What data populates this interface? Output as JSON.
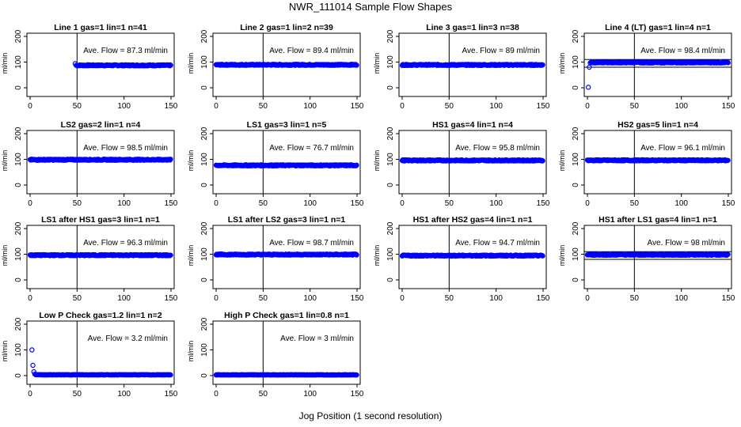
{
  "figure": {
    "title": "NWR_111014  Sample Flow Shapes",
    "xlabel": "Jog Position (1 second resolution)"
  },
  "chart_data": [
    {
      "type": "scatter",
      "title": "Line 1 gas=1 lin=1 n=41",
      "ylabel": "ml/min",
      "annotation": "Ave. Flow =  87.3  ml/min",
      "xlim": [
        0,
        150
      ],
      "ylim": [
        0,
        200
      ],
      "xticks": [
        "0",
        "50",
        "100",
        "150"
      ],
      "yticks": [
        "0",
        "100",
        "200"
      ],
      "vline": 50,
      "hlines": [],
      "flow": 87.3,
      "x": [
        48
      ],
      "y": [
        94
      ]
    },
    {
      "type": "scatter",
      "title": "Line 2 gas=1 lin=2 n=39",
      "ylabel": "ml/min",
      "annotation": "Ave. Flow =  89.4  ml/min",
      "xlim": [
        0,
        150
      ],
      "ylim": [
        0,
        200
      ],
      "xticks": [
        "0",
        "50",
        "100",
        "150"
      ],
      "yticks": [
        "0",
        "100",
        "200"
      ],
      "vline": 50,
      "hlines": [],
      "flow": 89.4,
      "x": [],
      "y": []
    },
    {
      "type": "scatter",
      "title": "Line 3 gas=1 lin=3 n=38",
      "ylabel": "ml/min",
      "annotation": "Ave. Flow =  89  ml/min",
      "xlim": [
        0,
        150
      ],
      "ylim": [
        0,
        200
      ],
      "xticks": [
        "0",
        "50",
        "100",
        "150"
      ],
      "yticks": [
        "0",
        "100",
        "200"
      ],
      "vline": 50,
      "hlines": [],
      "flow": 89,
      "x": [],
      "y": []
    },
    {
      "type": "scatter",
      "title": "Line 4 (LT) gas=1 lin=4 n=1",
      "ylabel": "ml/min",
      "annotation": "Ave. Flow =  98.4  ml/min",
      "xlim": [
        0,
        150
      ],
      "ylim": [
        0,
        200
      ],
      "xticks": [
        "0",
        "50",
        "100",
        "150"
      ],
      "yticks": [
        "0",
        "100",
        "200"
      ],
      "vline": 50,
      "hlines": [
        110,
        80
      ],
      "flow": 98.4,
      "x": [
        1,
        2,
        3
      ],
      "y": [
        2,
        80,
        97
      ]
    },
    {
      "type": "scatter",
      "title": "LS2 gas=2 lin=1 n=4",
      "ylabel": "ml/min",
      "annotation": "Ave. Flow =  98.5  ml/min",
      "xlim": [
        0,
        150
      ],
      "ylim": [
        0,
        200
      ],
      "xticks": [
        "0",
        "50",
        "100",
        "150"
      ],
      "yticks": [
        "0",
        "100",
        "200"
      ],
      "vline": 50,
      "hlines": [],
      "flow": 98.5,
      "x": [],
      "y": []
    },
    {
      "type": "scatter",
      "title": "LS1 gas=3 lin=1 n=5",
      "ylabel": "ml/min",
      "annotation": "Ave. Flow =  76.7  ml/min",
      "xlim": [
        0,
        150
      ],
      "ylim": [
        0,
        200
      ],
      "xticks": [
        "0",
        "50",
        "100",
        "150"
      ],
      "yticks": [
        "0",
        "100",
        "200"
      ],
      "vline": 50,
      "hlines": [],
      "flow": 76.7,
      "x": [],
      "y": []
    },
    {
      "type": "scatter",
      "title": "HS1 gas=4 lin=1 n=4",
      "ylabel": "ml/min",
      "annotation": "Ave. Flow =  95.8  ml/min",
      "xlim": [
        0,
        150
      ],
      "ylim": [
        0,
        200
      ],
      "xticks": [
        "0",
        "50",
        "100",
        "150"
      ],
      "yticks": [
        "0",
        "100",
        "200"
      ],
      "vline": 50,
      "hlines": [],
      "flow": 95.8,
      "x": [],
      "y": []
    },
    {
      "type": "scatter",
      "title": "HS2 gas=5 lin=1 n=4",
      "ylabel": "ml/min",
      "annotation": "Ave. Flow =  96.1  ml/min",
      "xlim": [
        0,
        150
      ],
      "ylim": [
        0,
        200
      ],
      "xticks": [
        "0",
        "50",
        "100",
        "150"
      ],
      "yticks": [
        "0",
        "100",
        "200"
      ],
      "vline": 50,
      "hlines": [],
      "flow": 96.1,
      "x": [],
      "y": []
    },
    {
      "type": "scatter",
      "title": "LS1 after HS1 gas=3 lin=1 n=1",
      "ylabel": "ml/min",
      "annotation": "Ave. Flow =  96.3  ml/min",
      "xlim": [
        0,
        150
      ],
      "ylim": [
        0,
        200
      ],
      "xticks": [
        "0",
        "50",
        "100",
        "150"
      ],
      "yticks": [
        "0",
        "100",
        "200"
      ],
      "vline": 50,
      "hlines": [],
      "flow": 96.3,
      "x": [],
      "y": []
    },
    {
      "type": "scatter",
      "title": "LS1 after LS2 gas=3 lin=1 n=1",
      "ylabel": "ml/min",
      "annotation": "Ave. Flow =  98.7  ml/min",
      "xlim": [
        0,
        150
      ],
      "ylim": [
        0,
        200
      ],
      "xticks": [
        "0",
        "50",
        "100",
        "150"
      ],
      "yticks": [
        "0",
        "100",
        "200"
      ],
      "vline": 50,
      "hlines": [],
      "flow": 98.7,
      "x": [],
      "y": []
    },
    {
      "type": "scatter",
      "title": "HS1 after HS2 gas=4 lin=1 n=1",
      "ylabel": "ml/min",
      "annotation": "Ave. Flow =  94.7  ml/min",
      "xlim": [
        0,
        150
      ],
      "ylim": [
        0,
        200
      ],
      "xticks": [
        "0",
        "50",
        "100",
        "150"
      ],
      "yticks": [
        "0",
        "100",
        "200"
      ],
      "vline": 50,
      "hlines": [],
      "flow": 94.7,
      "x": [],
      "y": []
    },
    {
      "type": "scatter",
      "title": "HS1 after LS1 gas=4 lin=1 n=1",
      "ylabel": "ml/min",
      "annotation": "Ave. Flow =  98  ml/min",
      "xlim": [
        0,
        150
      ],
      "ylim": [
        0,
        200
      ],
      "xticks": [
        "0",
        "50",
        "100",
        "150"
      ],
      "yticks": [
        "0",
        "100",
        "200"
      ],
      "vline": 50,
      "hlines": [
        110,
        80
      ],
      "flow": 98,
      "x": [],
      "y": []
    },
    {
      "type": "scatter",
      "title": "Low P Check gas=1.2 lin=1 n=2",
      "ylabel": "ml/min",
      "annotation": "Ave. Flow =  3.2  ml/min",
      "xlim": [
        0,
        150
      ],
      "ylim": [
        0,
        200
      ],
      "xticks": [
        "0",
        "50",
        "100",
        "150"
      ],
      "yticks": [
        "0",
        "100",
        "200"
      ],
      "vline": 50,
      "hlines": [],
      "flow": 3.2,
      "x": [
        2,
        3,
        4,
        5
      ],
      "y": [
        100,
        40,
        15,
        6
      ]
    },
    {
      "type": "scatter",
      "title": "High P Check gas=1 lin=0.8 n=1",
      "ylabel": "ml/min",
      "annotation": "Ave. Flow =  3  ml/min",
      "xlim": [
        0,
        150
      ],
      "ylim": [
        0,
        200
      ],
      "xticks": [
        "0",
        "50",
        "100",
        "150"
      ],
      "yticks": [
        "0",
        "100",
        "200"
      ],
      "vline": 50,
      "hlines": [],
      "flow": 3,
      "x": [],
      "y": []
    }
  ],
  "colors": {
    "points": "#0000ff",
    "axes": "#000000",
    "background": "#ffffff"
  }
}
